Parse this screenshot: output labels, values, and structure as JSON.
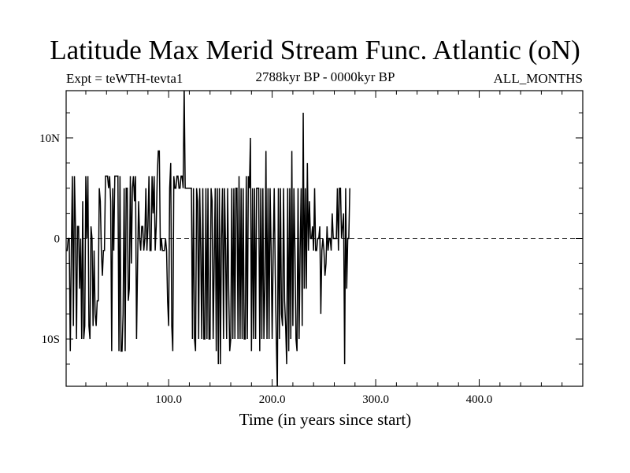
{
  "chart_data": {
    "type": "line",
    "title": "Latitude Max Merid Stream Func. Atlantic (oN)",
    "experiment": "Expt = teWTH-tevta1",
    "period": "2788kyr BP - 0000kyr BP",
    "season": "ALL_MONTHS",
    "xlabel": "Time (in years since start)",
    "ylabel": "",
    "xlim": [
      1,
      500
    ],
    "ylim": [
      -14.7,
      14.7
    ],
    "x_ticks": [
      100,
      200,
      300,
      400
    ],
    "x_tick_labels": [
      "100.0",
      "200.0",
      "300.0",
      "400.0"
    ],
    "y_ticks": [
      -10,
      0,
      10
    ],
    "y_tick_labels": [
      "10S",
      "0",
      "10N"
    ],
    "zero_line": true,
    "grid": false,
    "series": [
      {
        "name": "Latitude of max meridional streamfunction",
        "x_start": 1,
        "x_step": 1,
        "values": [
          -1.2,
          -1.2,
          0,
          0,
          -11.2,
          -1.2,
          6.2,
          -8.7,
          6.2,
          1.2,
          -10,
          1.2,
          1.2,
          -5,
          0,
          -10,
          3.7,
          -10,
          -8.7,
          6.2,
          0,
          6.2,
          -8.7,
          -10,
          1.2,
          0,
          -8.7,
          -1.2,
          -7.5,
          -8.7,
          -6.2,
          -6.2,
          5,
          3.7,
          -1.2,
          -3.7,
          -1.2,
          -1.2,
          6.2,
          6.2,
          6.2,
          5,
          6.2,
          3.7,
          -11.2,
          5,
          -1.2,
          6.2,
          6.2,
          6.2,
          6.2,
          -11.2,
          6.2,
          -11.2,
          -11.2,
          -7.5,
          5,
          -11.2,
          5,
          5,
          -6.2,
          -5,
          6.2,
          -2.5,
          5,
          6.2,
          3.7,
          6.2,
          -10,
          -2.5,
          3.7,
          0,
          -1.2,
          1.2,
          1.2,
          -1.2,
          0,
          5,
          -1.2,
          1.2,
          6.2,
          -1.2,
          -1.2,
          6.2,
          2.5,
          6.2,
          -1.2,
          1.2,
          6.2,
          8.7,
          8.7,
          -1.2,
          0,
          -1.2,
          -1.2,
          -1.2,
          0,
          -1.2,
          -6.2,
          -8.7,
          5,
          7.5,
          -8.7,
          -11.2,
          6.2,
          5,
          5,
          6.2,
          6.2,
          5,
          5,
          6.2,
          6.2,
          5,
          15,
          5,
          5,
          5,
          5,
          5,
          5,
          5,
          -10,
          5,
          -10,
          -11.2,
          5,
          3.7,
          -10,
          5,
          -1.2,
          -10,
          5,
          -10,
          -10,
          5,
          -10,
          5,
          -10,
          -10,
          5,
          3.7,
          -10,
          -2.5,
          5,
          -11.2,
          5,
          -12.5,
          5,
          -12.5,
          0,
          5,
          -10,
          5,
          -1.2,
          -10,
          5,
          -5,
          -11.2,
          -10,
          5,
          -10,
          5,
          -10,
          5,
          5,
          -10,
          6.2,
          -10,
          5,
          -10,
          5,
          -10,
          -10,
          6.2,
          -10,
          6.2,
          5,
          10,
          -11.2,
          5,
          -10,
          5,
          -10,
          5,
          5,
          5,
          -11.2,
          5,
          -10,
          5,
          -10,
          -5,
          8.7,
          -10,
          5,
          -10,
          5,
          -1.2,
          -10,
          -1.2,
          5,
          -3.7,
          -10,
          -15,
          5,
          -10,
          5,
          -7.5,
          -8.7,
          5,
          -6.2,
          -8.7,
          -12.5,
          5,
          -11.2,
          5,
          -10,
          8.7,
          -8.7,
          5,
          -1.2,
          -10,
          -11.2,
          5,
          -10,
          -1.2,
          5,
          -8.7,
          12.5,
          -5,
          5,
          -5,
          7.5,
          -1.2,
          3.7,
          0,
          0,
          1.2,
          -1.2,
          5,
          -1.2,
          -1.2,
          0,
          0,
          1.2,
          -7.5,
          -1.2,
          0,
          -1.2,
          -3.7,
          -2.5,
          1.2,
          -1.2,
          0,
          0,
          -1.2,
          2.5,
          0,
          0,
          0,
          0,
          5,
          -1.2,
          5,
          5,
          0,
          1.2,
          2.5,
          -12.5,
          5,
          -5,
          0,
          0,
          5
        ]
      }
    ]
  }
}
